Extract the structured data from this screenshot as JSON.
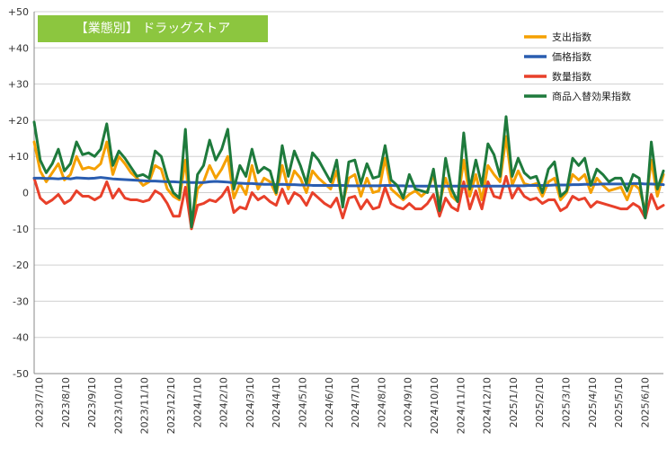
{
  "chart_data": {
    "type": "line",
    "title": "【業態別】 ドラッグストア",
    "ylim": [
      -50,
      50
    ],
    "yticks": [
      "+50",
      "+40",
      "+30",
      "+20",
      "+10",
      "0",
      "-10",
      "-20",
      "-30",
      "-40",
      "-50"
    ],
    "xticks": [
      "2023/7/10",
      "2023/8/10",
      "2023/9/10",
      "2023/10/10",
      "2023/11/10",
      "2023/12/10",
      "2024/1/10",
      "2024/2/10",
      "2024/3/10",
      "2024/4/10",
      "2024/5/10",
      "2024/6/10",
      "2024/7/10",
      "2024/8/10",
      "2024/9/10",
      "2024/10/10",
      "2024/11/10",
      "2024/12/10",
      "2025/1/10",
      "2025/2/10",
      "2025/3/10",
      "2025/4/10",
      "2025/5/10",
      "2025/6/10"
    ],
    "legend_position": "top-right",
    "grid": true,
    "series": [
      {
        "name": "支出指数",
        "color": "#f5a000",
        "values": [
          14.0,
          6.0,
          3.0,
          5.5,
          8.0,
          3.5,
          5.0,
          10.0,
          6.5,
          7.0,
          6.5,
          8.0,
          14.0,
          5.0,
          10.0,
          8.0,
          5.5,
          4.0,
          2.0,
          3.0,
          7.5,
          6.5,
          1.0,
          -1.0,
          -2.0,
          9.0,
          -10.0,
          1.0,
          3.0,
          7.5,
          4.0,
          6.5,
          10.0,
          -1.5,
          2.5,
          -0.5,
          7.5,
          1.0,
          4.0,
          3.0,
          -0.5,
          7.5,
          1.0,
          6.0,
          4.0,
          0.0,
          6.0,
          4.0,
          2.5,
          1.0,
          6.0,
          -3.0,
          4.0,
          5.0,
          -1.0,
          4.0,
          0.0,
          0.5,
          9.5,
          1.0,
          -0.5,
          -2.0,
          -0.5,
          0.5,
          -1.0,
          0.5,
          5.0,
          -3.0,
          4.0,
          -1.0,
          -2.5,
          9.0,
          -1.0,
          5.0,
          -2.0,
          7.5,
          5.0,
          3.0,
          15.5,
          2.0,
          6.0,
          2.5,
          2.0,
          2.5,
          -1.0,
          3.0,
          4.0,
          -2.0,
          0.0,
          5.0,
          3.5,
          5.0,
          0.0,
          4.0,
          2.0,
          0.5,
          1.0,
          1.5,
          -2.0,
          2.5,
          1.0,
          -5.0,
          9.0,
          -1.0,
          5.0
        ]
      },
      {
        "name": "価格指数",
        "color": "#2a5db0",
        "values": [
          4.0,
          4.0,
          3.9,
          3.9,
          3.8,
          4.0,
          3.8,
          4.1,
          4.0,
          3.9,
          4.0,
          4.2,
          4.0,
          3.8,
          3.7,
          3.6,
          3.5,
          3.4,
          3.3,
          3.2,
          3.2,
          3.1,
          3.0,
          3.0,
          2.9,
          2.9,
          2.8,
          2.8,
          2.8,
          3.0,
          3.1,
          3.0,
          2.9,
          2.7,
          2.6,
          2.5,
          2.5,
          2.4,
          2.3,
          2.3,
          2.2,
          2.3,
          2.2,
          2.2,
          2.1,
          2.1,
          2.0,
          2.0,
          2.0,
          2.0,
          2.0,
          2.0,
          1.9,
          1.9,
          1.9,
          1.9,
          1.9,
          1.9,
          2.0,
          2.0,
          1.9,
          1.9,
          1.8,
          1.8,
          1.8,
          1.8,
          1.8,
          1.8,
          1.8,
          1.8,
          1.8,
          1.8,
          1.8,
          1.8,
          1.8,
          1.8,
          1.8,
          1.8,
          1.8,
          1.9,
          1.9,
          1.9,
          2.0,
          2.0,
          2.0,
          2.0,
          2.1,
          2.1,
          2.1,
          2.2,
          2.2,
          2.3,
          2.3,
          2.3,
          2.4,
          2.4,
          2.4,
          2.4,
          2.4,
          2.5,
          2.5,
          2.4,
          2.4,
          2.3,
          2.2
        ]
      },
      {
        "name": "数量指数",
        "color": "#e8402a",
        "values": [
          4.0,
          -1.5,
          -3.0,
          -2.0,
          -0.5,
          -3.0,
          -2.0,
          0.5,
          -1.0,
          -1.0,
          -2.0,
          -1.0,
          3.0,
          -1.5,
          1.0,
          -1.5,
          -2.0,
          -2.0,
          -2.5,
          -2.0,
          0.5,
          -0.5,
          -3.0,
          -6.5,
          -6.5,
          1.5,
          -10.0,
          -3.5,
          -3.0,
          -2.0,
          -2.5,
          -1.0,
          1.5,
          -5.5,
          -4.0,
          -4.5,
          0.0,
          -2.0,
          -1.0,
          -2.5,
          -3.5,
          1.0,
          -3.0,
          0.0,
          -1.0,
          -3.5,
          0.0,
          -1.5,
          -3.0,
          -4.0,
          -1.5,
          -7.0,
          -1.5,
          -1.0,
          -4.5,
          -2.0,
          -4.5,
          -4.0,
          1.5,
          -3.0,
          -4.0,
          -4.5,
          -3.0,
          -4.5,
          -4.5,
          -3.0,
          -0.5,
          -6.5,
          -1.5,
          -4.0,
          -5.0,
          3.0,
          -4.5,
          0.5,
          -4.5,
          3.0,
          -1.0,
          -1.5,
          4.5,
          -1.5,
          1.5,
          -1.0,
          -2.0,
          -1.5,
          -3.0,
          -2.0,
          -2.0,
          -5.0,
          -4.0,
          -1.0,
          -2.0,
          -1.5,
          -4.0,
          -2.5,
          -3.0,
          -3.5,
          -4.0,
          -4.5,
          -4.5,
          -3.0,
          -4.0,
          -7.0,
          -0.5,
          -4.5,
          -3.5
        ]
      },
      {
        "name": "商品入替効果指数",
        "color": "#1e7a3c",
        "values": [
          19.5,
          9.0,
          5.5,
          8.0,
          12.0,
          6.0,
          8.0,
          14.0,
          10.5,
          11.0,
          10.0,
          12.0,
          19.0,
          7.5,
          11.5,
          9.5,
          7.0,
          4.5,
          5.0,
          4.0,
          11.5,
          10.0,
          4.0,
          0.0,
          -1.5,
          17.5,
          -9.5,
          5.0,
          7.5,
          14.5,
          9.0,
          12.0,
          17.5,
          1.0,
          7.5,
          4.5,
          12.0,
          5.5,
          7.0,
          6.0,
          0.0,
          13.0,
          4.5,
          11.5,
          7.5,
          2.5,
          11.0,
          9.0,
          6.0,
          3.0,
          9.0,
          -4.0,
          8.5,
          9.0,
          2.5,
          8.0,
          4.0,
          4.5,
          13.0,
          3.5,
          2.0,
          -1.5,
          5.0,
          1.0,
          0.5,
          0.0,
          6.5,
          -5.0,
          9.5,
          1.0,
          -2.5,
          16.5,
          1.0,
          9.0,
          2.0,
          13.5,
          10.5,
          4.5,
          21.0,
          4.5,
          9.5,
          5.5,
          4.0,
          4.5,
          0.0,
          6.5,
          8.5,
          -1.0,
          0.5,
          9.5,
          7.5,
          9.5,
          2.0,
          6.5,
          5.0,
          3.0,
          4.0,
          4.0,
          0.5,
          5.0,
          4.0,
          -7.0,
          14.0,
          1.0,
          6.0
        ]
      }
    ]
  }
}
